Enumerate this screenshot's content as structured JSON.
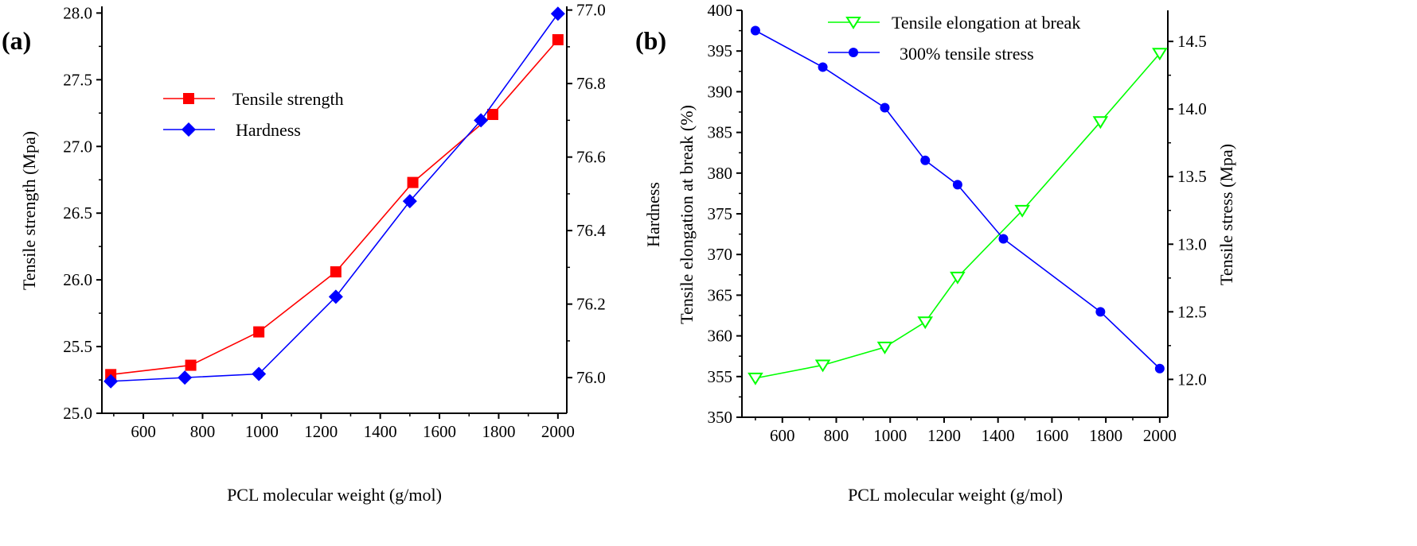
{
  "chart_data": [
    {
      "type": "line",
      "panel_label": "(a)",
      "xlabel": "PCL molecular weight (g/mol)",
      "ylabel": "Tensile strength (Mpa)",
      "ylabel_right": "",
      "xlim": [
        460,
        2030
      ],
      "ylim": [
        25.0,
        28.05
      ],
      "ylim_right": [
        75.903,
        77.01
      ],
      "xticks": [
        600,
        800,
        1000,
        1200,
        1400,
        1600,
        1800,
        2000
      ],
      "yticks": [
        "25.0",
        "25.5",
        "26.0",
        "26.5",
        "27.0",
        "27.5",
        "28.0"
      ],
      "yticks_right": [
        "76.0",
        "76.2",
        "76.4",
        "76.6",
        "76.8",
        "77.0"
      ],
      "legend_position": "upper-left",
      "series": [
        {
          "name": "Tensile strength",
          "axis": "left",
          "color": "#ff0000",
          "marker": "square",
          "x": [
            490,
            760,
            990,
            1250,
            1510,
            1780,
            2000
          ],
          "y": [
            25.29,
            25.36,
            25.61,
            26.06,
            26.73,
            27.24,
            27.8
          ]
        },
        {
          "name": "Hardness",
          "axis": "right",
          "color": "#0000ff",
          "marker": "diamond",
          "x": [
            490,
            740,
            990,
            1250,
            1500,
            1740,
            2000
          ],
          "y": [
            75.99,
            76.0,
            76.01,
            76.22,
            76.48,
            76.7,
            76.99
          ]
        }
      ]
    },
    {
      "type": "line",
      "panel_label": "(b)",
      "xlabel": "PCL molecular weight (g/mol)",
      "ylabel": "Tensile elongation at break (%)",
      "ylabel_extra": "Hardness",
      "ylabel_right": "Tensile stress (Mpa)",
      "xlim": [
        450,
        2030
      ],
      "ylim": [
        350,
        400
      ],
      "ylim_right": [
        11.72,
        14.73
      ],
      "xticks": [
        600,
        800,
        1000,
        1200,
        1400,
        1600,
        1800,
        2000
      ],
      "yticks": [
        "350",
        "355",
        "360",
        "365",
        "370",
        "375",
        "380",
        "385",
        "390",
        "395",
        "400"
      ],
      "yticks_right": [
        "12.0",
        "12.5",
        "13.0",
        "13.5",
        "14.0",
        "14.5"
      ],
      "legend_position": "top-center",
      "series": [
        {
          "name": "Tensile elongation at break",
          "axis": "left",
          "color": "#00ff00",
          "marker": "triangle-down-open",
          "x": [
            500,
            750,
            980,
            1130,
            1250,
            1490,
            1780,
            2000
          ],
          "y": [
            354.8,
            356.4,
            358.6,
            361.7,
            367.2,
            375.4,
            386.3,
            394.7
          ]
        },
        {
          "name": "300% tensile stress",
          "axis": "right",
          "color": "#0000ff",
          "marker": "circle",
          "x": [
            500,
            750,
            980,
            1130,
            1250,
            1420,
            1780,
            2000
          ],
          "y": [
            14.58,
            14.31,
            14.01,
            13.62,
            13.44,
            13.04,
            12.5,
            12.08
          ]
        }
      ]
    }
  ]
}
